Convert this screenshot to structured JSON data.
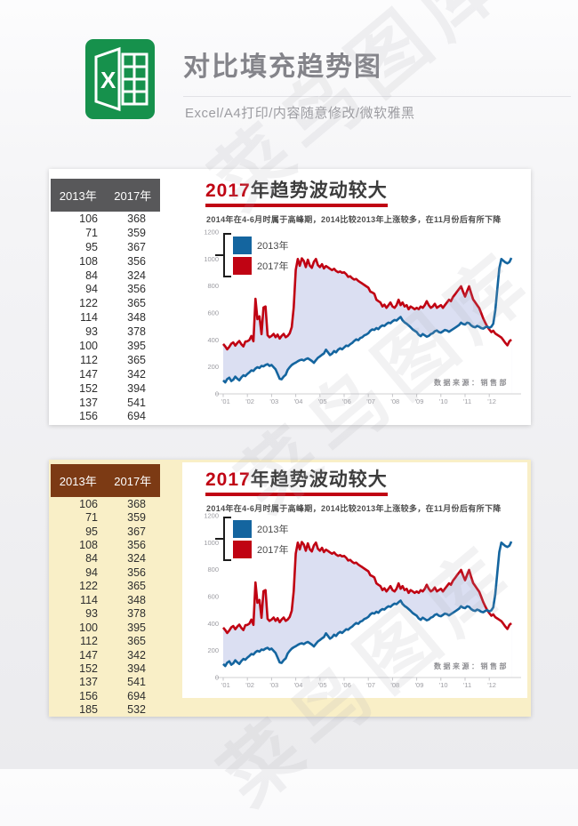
{
  "page": {
    "watermark": "菜鸟图库"
  },
  "header": {
    "title": "对比填充趋势图",
    "subtitle": "Excel/A4打印/内容随意修改/微软雅黑",
    "icon": "excel-logo",
    "icon_color": "#16914c"
  },
  "table": {
    "headers": [
      "2013年",
      "2017年"
    ],
    "rows": [
      [
        106,
        368
      ],
      [
        71,
        359
      ],
      [
        95,
        367
      ],
      [
        108,
        356
      ],
      [
        84,
        324
      ],
      [
        94,
        356
      ],
      [
        122,
        365
      ],
      [
        114,
        348
      ],
      [
        93,
        378
      ],
      [
        100,
        395
      ],
      [
        112,
        365
      ],
      [
        147,
        342
      ],
      [
        152,
        394
      ],
      [
        137,
        541
      ],
      [
        156,
        694
      ],
      [
        185,
        532
      ]
    ]
  },
  "panels": [
    {
      "name": "white-panel",
      "rows_visible": 15,
      "panel_bg": "#ffffff",
      "header_bg": "#58585a"
    },
    {
      "name": "beige-panel",
      "rows_visible": 16,
      "panel_bg": "#f9efc7",
      "header_bg": "#7c3a14"
    }
  ],
  "chart_data": {
    "type": "line",
    "title_prefix": "2017",
    "title_rest": "年趋势波动较大",
    "subtitle": "2014年在4-6月时属于高峰期，2014比较2013年上涨较多，在11月份后有所下降",
    "source_note": "数据来源：销售部",
    "x_tick_labels": [
      "'01",
      "'02",
      "'03",
      "'04",
      "'05",
      "'06",
      "'07",
      "'08",
      "'09",
      "'10",
      "'11",
      "'12"
    ],
    "y_ticks": [
      0,
      200,
      400,
      600,
      800,
      1000,
      1200
    ],
    "ylim": [
      0,
      1200
    ],
    "grid": false,
    "legend_position": "top-left",
    "fill_between_color": "#dbdff2",
    "axis_color": "#cfcfd2",
    "label_color": "#9b9ba1",
    "legend": [
      {
        "name": "2013年",
        "color": "#14659f"
      },
      {
        "name": "2017年",
        "color": "#c00313"
      }
    ],
    "series": [
      {
        "name": "2013年",
        "color": "#14659f",
        "values": [
          100,
          85,
          110,
          120,
          95,
          105,
          128,
          112,
          100,
          122,
          138,
          132,
          148,
          160,
          175,
          170,
          188,
          198,
          192,
          208,
          204,
          214,
          220,
          208,
          214,
          198,
          182,
          148,
          112,
          108,
          128,
          142,
          178,
          198,
          214,
          224,
          232,
          242,
          250,
          254,
          248,
          258,
          264,
          254,
          244,
          230,
          250,
          268,
          278,
          290,
          300,
          328,
          308,
          288,
          298,
          318,
          308,
          328,
          338,
          330,
          344,
          358,
          354,
          368,
          378,
          392,
          404,
          398,
          414,
          420,
          434,
          440,
          450,
          468,
          478,
          474,
          488,
          480,
          498,
          508,
          504,
          518,
          528,
          524,
          538,
          548,
          544,
          558,
          570,
          545,
          530,
          520,
          508,
          494,
          478,
          468,
          458,
          438,
          428,
          444,
          434,
          424,
          430,
          444,
          450,
          464,
          470,
          458,
          454,
          464,
          474,
          470,
          460,
          470,
          480,
          490,
          500,
          510,
          528,
          518,
          514,
          528,
          524,
          508,
          498,
          494,
          504,
          498,
          488,
          484,
          494,
          500,
          490,
          498,
          520,
          620,
          780,
          930,
          1000,
          988,
          975,
          968,
          978,
          1008
        ]
      },
      {
        "name": "2017年",
        "color": "#c00313",
        "values": [
          370,
          352,
          330,
          348,
          372,
          382,
          358,
          378,
          392,
          368,
          352,
          388,
          390,
          400,
          430,
          390,
          705,
          554,
          575,
          443,
          640,
          648,
          435,
          420,
          430,
          445,
          420,
          440,
          410,
          430,
          445,
          420,
          430,
          450,
          495,
          640,
          920,
          1000,
          950,
          1005,
          985,
          940,
          995,
          950,
          935,
          980,
          1000,
          955,
          940,
          962,
          930,
          948,
          938,
          928,
          918,
          928,
          912,
          902,
          908,
          898,
          902,
          888,
          868,
          872,
          858,
          848,
          852,
          838,
          828,
          818,
          808,
          798,
          788,
          758,
          752,
          742,
          698,
          688,
          678,
          648,
          662,
          638,
          658,
          678,
          648,
          638,
          658,
          698,
          658,
          678,
          648,
          658,
          628,
          648,
          638,
          628,
          638,
          628,
          648,
          638,
          658,
          688,
          658,
          638,
          648,
          668,
          638,
          648,
          658,
          638,
          658,
          678,
          698,
          688,
          718,
          738,
          758,
          778,
          798,
          758,
          722,
          762,
          798,
          748,
          700,
          680,
          658,
          636,
          600,
          560,
          528,
          500,
          478,
          458,
          468,
          448,
          438,
          428,
          418,
          398,
          378,
          360,
          390,
          402
        ]
      }
    ]
  }
}
